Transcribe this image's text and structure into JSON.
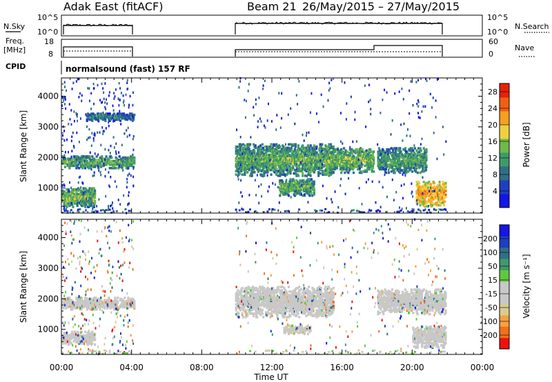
{
  "header": {
    "radar": "Adak East (fitACF)",
    "beam": "Beam 21",
    "dates": "26/May/2015 – 27/May/2015"
  },
  "meta_panels": {
    "nsky_label": "N.Sky",
    "nsky_ticks": [
      "10^5",
      "10^0"
    ],
    "nsearch_label": "N.Search",
    "nsearch_ticks": [
      "10^5",
      "10^0"
    ],
    "freq_label": "Freq.",
    "freq_unit": "[MHz]",
    "freq_ticks": [
      "18",
      "8"
    ],
    "nave_label": "Nave",
    "nave_ticks": [
      "60",
      "0"
    ],
    "cpid_label": "CPID",
    "cpid_text": "normalsound (fast) 157 RF"
  },
  "x_ticks": [
    "00:00",
    "04:00",
    "08:00",
    "12:00",
    "16:00",
    "20:00",
    "00:00"
  ],
  "colors": {
    "power_scale": [
      "#1515e6",
      "#1f3fbf",
      "#2f6f86",
      "#3f9a6a",
      "#70b84c",
      "#f0d040",
      "#f6a020",
      "#f06010",
      "#e82008"
    ],
    "velocity_scale": [
      "#ee1111",
      "#f2701a",
      "#f6a040",
      "#d8cc90",
      "#c8c8c8",
      "#c8c8c8",
      "#60c840",
      "#3f9a6a",
      "#2f6f86",
      "#1f3fbf",
      "#1515e6"
    ]
  },
  "chart_data": [
    {
      "type": "heatmap",
      "title": "",
      "xlabel": "Time UT",
      "ylabel": "Slant Range [km]",
      "xlim": [
        "00:00",
        "00:00"
      ],
      "ylim": [
        180,
        4600
      ],
      "y_ticks": [
        "1000",
        "2000",
        "3000",
        "4000"
      ],
      "colorbar": {
        "label": "Power [dB]",
        "ticks": [
          "4",
          "8",
          "12",
          "16",
          "20",
          "24",
          "28"
        ],
        "range": [
          0,
          30
        ]
      },
      "observation_periods_ut": [
        [
          0.0,
          4.1
        ],
        [
          9.9,
          21.9
        ]
      ],
      "echo_regions": [
        {
          "t": [
            0.0,
            4.1
          ],
          "range_km": [
            1650,
            2050
          ],
          "db": 9
        },
        {
          "t": [
            0.0,
            1.9
          ],
          "range_km": [
            380,
            1000
          ],
          "db": 10
        },
        {
          "t": [
            1.4,
            4.1
          ],
          "range_km": [
            3200,
            3450
          ],
          "db": 5
        },
        {
          "t": [
            9.9,
            15.5
          ],
          "range_km": [
            1400,
            2450
          ],
          "db": 9
        },
        {
          "t": [
            12.4,
            14.4
          ],
          "range_km": [
            750,
            1300
          ],
          "db": 9
        },
        {
          "t": [
            15.0,
            17.8
          ],
          "range_km": [
            1500,
            2300
          ],
          "db": 10
        },
        {
          "t": [
            18.0,
            20.8
          ],
          "range_km": [
            1500,
            2300
          ],
          "db": 8
        },
        {
          "t": [
            20.2,
            21.9
          ],
          "range_km": [
            400,
            1200
          ],
          "db": 17
        }
      ]
    },
    {
      "type": "heatmap",
      "title": "",
      "xlabel": "Time UT",
      "ylabel": "Slant Range [km]",
      "xlim": [
        "00:00",
        "00:00"
      ],
      "ylim": [
        180,
        4600
      ],
      "y_ticks": [
        "1000",
        "2000",
        "3000",
        "4000"
      ],
      "colorbar": {
        "label": "Velocity [m s⁻¹]",
        "ticks": [
          "200",
          "100",
          "50",
          "15",
          "-15",
          "-50",
          "-100",
          "-200"
        ],
        "range": [
          -250,
          250
        ]
      },
      "echo_regions": [
        {
          "t": [
            0.0,
            4.1
          ],
          "range_km": [
            1650,
            2050
          ],
          "v": 0
        },
        {
          "t": [
            0.0,
            1.9
          ],
          "range_km": [
            500,
            950
          ],
          "v": 0
        },
        {
          "t": [
            9.9,
            15.5
          ],
          "range_km": [
            1400,
            2400
          ],
          "v": -20
        },
        {
          "t": [
            12.6,
            14.2
          ],
          "range_km": [
            850,
            1150
          ],
          "v": -60
        },
        {
          "t": [
            18.0,
            21.9
          ],
          "range_km": [
            1500,
            2300
          ],
          "v": 0
        },
        {
          "t": [
            20.0,
            21.9
          ],
          "range_km": [
            400,
            1100
          ],
          "v": 0
        }
      ]
    }
  ]
}
